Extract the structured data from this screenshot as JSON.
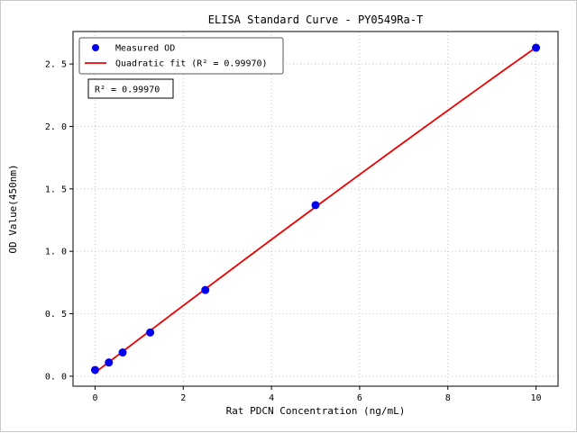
{
  "figure": {
    "title": "ELISA Standard Curve - PY0549Ra-T",
    "background": "#ffffff"
  },
  "chart_data": {
    "type": "scatter",
    "title": "ELISA Standard Curve - PY0549Ra-T",
    "xlabel": "Rat PDCN Concentration (ng/mL)",
    "ylabel": "OD Value(450nm)",
    "xlim": [
      -0.5,
      10.5
    ],
    "ylim": [
      -0.08,
      2.76
    ],
    "x_ticks": [
      0,
      2,
      4,
      6,
      8,
      10
    ],
    "x_tick_labels": [
      "0",
      "2",
      "4",
      "6",
      "8",
      "10"
    ],
    "y_ticks": [
      0.0,
      0.5,
      1.0,
      1.5,
      2.0,
      2.5
    ],
    "y_tick_labels": [
      "0. 0",
      "0. 5",
      "1. 0",
      "1. 5",
      "2. 0",
      "2. 5"
    ],
    "grid": true,
    "grid_style": "dotted",
    "grid_color": "#bbbbbb",
    "legend_position": "upper-left",
    "series": [
      {
        "name": "Measured OD",
        "type": "scatter",
        "color": "#0000ee",
        "x": [
          0,
          0.3125,
          0.625,
          1.25,
          2.5,
          5,
          10
        ],
        "y": [
          0.05,
          0.11,
          0.19,
          0.35,
          0.69,
          1.37,
          2.63
        ]
      },
      {
        "name": "Quadratic fit (R² = 0.99970)",
        "type": "line",
        "color": "#ee0000",
        "fit": "quadratic",
        "fit_range": [
          0,
          10
        ]
      }
    ],
    "annotation": {
      "text": "R² = 0.99970"
    }
  }
}
